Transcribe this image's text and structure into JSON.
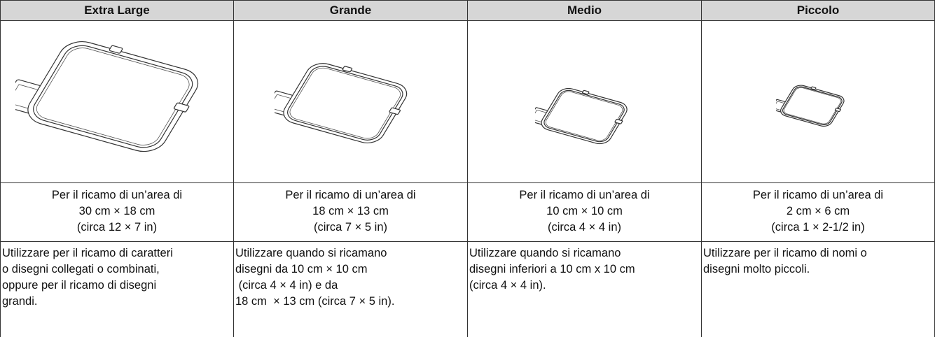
{
  "table": {
    "header": [
      "Extra Large",
      "Grande",
      "Medio",
      "Piccolo"
    ],
    "rows": [
      [
        [
          "Per il ricamo di un’area di",
          "30 cm × 18 cm",
          "(circa 12 × 7 in)"
        ],
        [
          "Per il ricamo di un’area di",
          "18 cm × 13 cm",
          "(circa 7 × 5 in)"
        ],
        [
          "Per il ricamo di un’area di",
          "10 cm × 10 cm",
          "(circa 4 × 4 in)"
        ],
        [
          "Per il ricamo di un’area di",
          "2 cm × 6 cm",
          "(circa 1 × 2-1/2 in)"
        ]
      ],
      [
        [
          "Utilizzare per il ricamo di caratteri",
          "o disegni collegati o combinati,",
          "oppure per il ricamo di disegni",
          "grandi."
        ],
        [
          "Utilizzare quando si ricamano",
          "disegni da 10 cm × 10 cm",
          " (circa 4 × 4 in) e da",
          "18 cm  × 13 cm (circa 7 × 5 in)."
        ],
        [
          "Utilizzare quando si ricamano",
          "disegni inferiori a 10 cm x 10 cm",
          "(circa 4 × 4 in)."
        ],
        [
          "Utilizzare per il ricamo di nomi o",
          "disegni molto piccoli."
        ]
      ]
    ]
  }
}
